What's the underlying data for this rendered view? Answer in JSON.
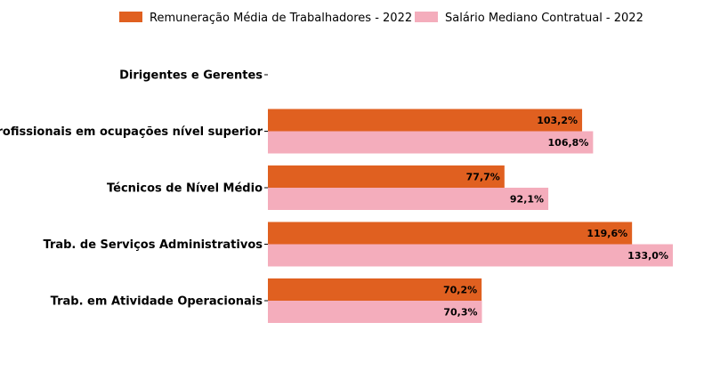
{
  "chart_data": {
    "type": "bar",
    "orientation": "horizontal",
    "categories": [
      "Dirigentes e Gerentes",
      "Profissionais em ocupações nível superior",
      "Técnicos de Nível Médio",
      "Trab. de Serviços Administrativos",
      "Trab. em Atividade Operacionais"
    ],
    "series": [
      {
        "name": "Remuneração Média de Trabalhadores - 2022",
        "color": "#e06020",
        "values": [
          null,
          103.2,
          77.7,
          119.6,
          70.2
        ],
        "labels": [
          "",
          "103,2%",
          "77,7%",
          "119,6%",
          "70,2%"
        ]
      },
      {
        "name": "Salário Mediano Contratual - 2022",
        "color": "#f4adbc",
        "values": [
          null,
          106.8,
          92.1,
          133.0,
          70.3
        ],
        "labels": [
          "",
          "106,8%",
          "92,1%",
          "133,0%",
          "70,3%"
        ]
      }
    ],
    "xlim": [
      0,
      133.0
    ],
    "legend": "top-center",
    "grid": false
  }
}
